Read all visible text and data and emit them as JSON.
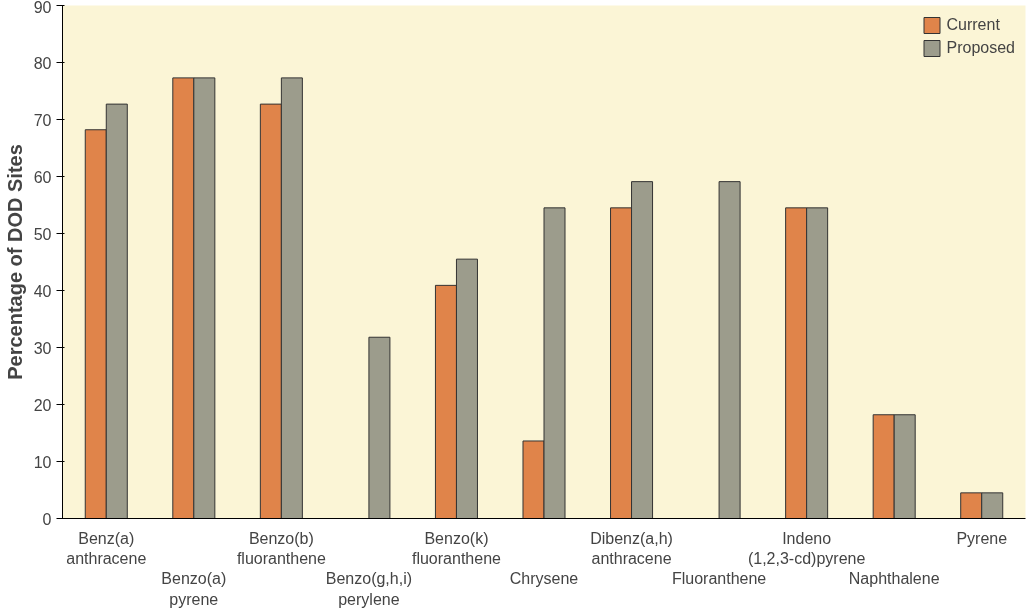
{
  "chart_data": {
    "type": "bar",
    "ylabel": "Percentage of DOD Sites",
    "categories": [
      "Benz(a) anthracene",
      "Benzo(a) pyrene",
      "Benzo(b) fluoranthene",
      "Benzo(g,h,i) perylene",
      "Benzo(k) fluoranthene",
      "Chrysene",
      "Dibenz(a,h) anthracene",
      "Fluoranthene",
      "Indeno (1,2,3-cd)pyrene",
      "Naphthalene",
      "Pyrene"
    ],
    "series": [
      {
        "name": "Current",
        "color": "#e0844a",
        "values": [
          68.2,
          77.3,
          72.7,
          null,
          40.9,
          13.6,
          54.5,
          null,
          54.5,
          18.2,
          4.5
        ]
      },
      {
        "name": "Proposed",
        "color": "#9c9c8c",
        "values": [
          72.7,
          77.3,
          77.3,
          31.8,
          45.5,
          54.5,
          59.1,
          59.1,
          54.5,
          18.2,
          4.5
        ]
      }
    ],
    "ylim": [
      0,
      90
    ],
    "yticks": [
      0,
      10,
      20,
      30,
      40,
      50,
      60,
      70,
      80,
      90
    ],
    "grid": false,
    "legend": "top right"
  }
}
